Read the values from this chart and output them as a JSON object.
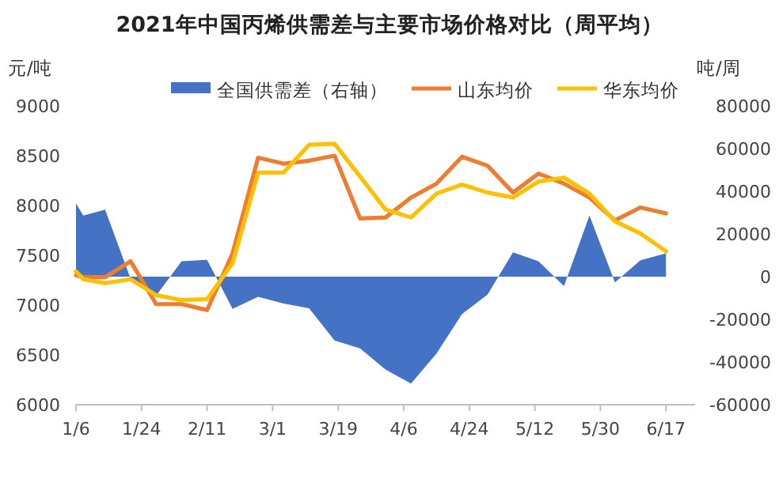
{
  "chart_data": {
    "type": "line",
    "title": "2021年中国丙烯供需差与主要市场价格对比（周平均）",
    "ylabel": "元/吨",
    "y2label": "吨/周",
    "x": [
      "2021-01-06",
      "2021-01-08",
      "2021-01-14",
      "2021-01-21",
      "2021-01-28",
      "2021-02-04",
      "2021-02-11",
      "2021-02-18",
      "2021-02-25",
      "2021-03-04",
      "2021-03-11",
      "2021-03-18",
      "2021-03-25",
      "2021-04-01",
      "2021-04-08",
      "2021-04-15",
      "2021-04-22",
      "2021-04-29",
      "2021-05-06",
      "2021-05-13",
      "2021-05-20",
      "2021-05-27",
      "2021-06-03",
      "2021-06-10",
      "2021-06-17"
    ],
    "series": [
      {
        "name": "全国供需差（右轴）",
        "type": "area",
        "axis": "y2",
        "color": "#4472c4",
        "values": [
          34300,
          28600,
          31400,
          -1000,
          -8900,
          7200,
          7900,
          -15100,
          -9400,
          -12600,
          -14800,
          -29900,
          -33600,
          -43500,
          -50100,
          -36000,
          -17500,
          -8400,
          11400,
          7200,
          -4400,
          28600,
          -2700,
          7700,
          10900
        ]
      },
      {
        "name": "山东均价",
        "color": "#ed7d31",
        "values": [
          7300,
          7280,
          7280,
          7440,
          7010,
          7010,
          6950,
          7520,
          8480,
          8420,
          8450,
          8500,
          7870,
          7880,
          8080,
          8220,
          8490,
          8400,
          8130,
          8320,
          8220,
          8080,
          7850,
          7980,
          7920
        ]
      },
      {
        "name": "华东均价",
        "color": "#ffc000",
        "values": [
          7340,
          7260,
          7220,
          7260,
          7100,
          7050,
          7060,
          7420,
          8330,
          8330,
          8610,
          8620,
          8290,
          7960,
          7880,
          8120,
          8210,
          8130,
          8080,
          8240,
          8280,
          8120,
          7840,
          7720,
          7540
        ]
      }
    ],
    "xlim": [
      "2021-01-06",
      "2021-06-25"
    ],
    "xticks": [
      {
        "value": "2021-01-06",
        "label": "1/6"
      },
      {
        "value": "2021-01-24",
        "label": "1/24"
      },
      {
        "value": "2021-02-11",
        "label": "2/11"
      },
      {
        "value": "2021-03-01",
        "label": "3/1"
      },
      {
        "value": "2021-03-19",
        "label": "3/19"
      },
      {
        "value": "2021-04-06",
        "label": "4/6"
      },
      {
        "value": "2021-04-24",
        "label": "4/24"
      },
      {
        "value": "2021-05-12",
        "label": "5/12"
      },
      {
        "value": "2021-05-30",
        "label": "5/30"
      },
      {
        "value": "2021-06-17",
        "label": "6/17"
      }
    ],
    "ylim": [
      6000,
      9000
    ],
    "yticks": [
      6000,
      6500,
      7000,
      7500,
      8000,
      8500,
      9000
    ],
    "y2lim": [
      -60000,
      80000
    ],
    "y2ticks": [
      -60000,
      -40000,
      -20000,
      0,
      20000,
      40000,
      60000,
      80000
    ],
    "grid": false,
    "legend": "top",
    "marker": "none"
  }
}
